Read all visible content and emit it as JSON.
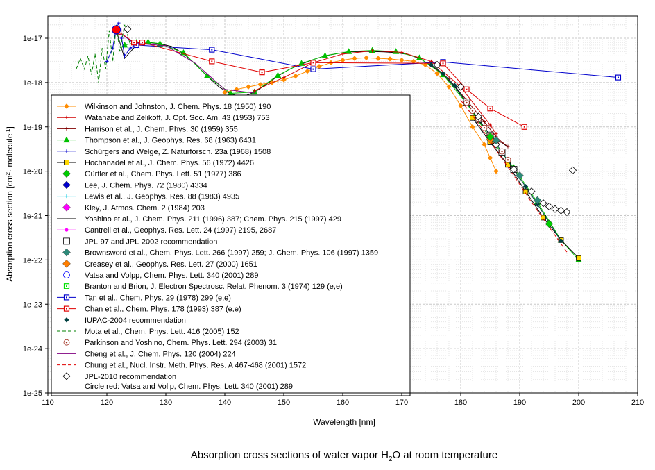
{
  "chart_data": {
    "type": "line",
    "title": "Absorption cross sections of water vapor H₂O at room temperature",
    "title_main": "Absorption cross sections of water vapor H",
    "title_sub": "2",
    "title_tail": "O at room temperature",
    "xlabel": "Wavelength [nm]",
    "ylabel_main": "Absorption cross section [cm",
    "ylabel_sup1": "2",
    "ylabel_mid": " molecule",
    "ylabel_sup2": "-1",
    "ylabel_tail": "]",
    "ylabel": "Absorption cross section [cm2 molecule-1]",
    "xlim": [
      110,
      210
    ],
    "ylim": [
      1e-25,
      3e-17
    ],
    "y_scale": "log",
    "grid": true,
    "legend_position": "lower-left",
    "x_ticks": [
      "110",
      "120",
      "130",
      "140",
      "150",
      "160",
      "170",
      "180",
      "190",
      "200",
      "210"
    ],
    "y_ticks": [
      "1e-17",
      "1e-18",
      "1e-19",
      "1e-20",
      "1e-21",
      "1e-22",
      "1e-23",
      "1e-24",
      "1e-25"
    ],
    "legend": [
      {
        "label": "Wilkinson and Johnston, J. Chem. Phys. 18 (1950) 190",
        "color": "#ff8c00",
        "marker": "diamond-small",
        "line": "solid"
      },
      {
        "label": "Watanabe and Zelikoff, J. Opt. Soc. Am. 43 (1953) 753",
        "color": "#d00000",
        "marker": "plus",
        "line": "solid"
      },
      {
        "label": "Harrison et al., J. Chem. Phys. 30 (1959) 355",
        "color": "#800000",
        "marker": "plus",
        "line": "solid"
      },
      {
        "label": "Thompson et al., J. Geophys. Res. 68 (1963) 6431",
        "color": "#00c000",
        "marker": "triangle",
        "line": "solid"
      },
      {
        "label": "Schürgers and Welge, Z. Naturforsch. 23a (1968) 1508",
        "color": "#0000cc",
        "marker": "plus",
        "line": "solid"
      },
      {
        "label": "Hochanadel et al., J. Chem. Phys. 56 (1972) 4426",
        "color": "#000000",
        "marker": "square-yellow",
        "line": "solid"
      },
      {
        "label": "Gürtler et al., Chem. Phys. Lett. 51 (1977) 386",
        "color": "#00cc00",
        "marker": "diamond-big",
        "line": "none"
      },
      {
        "label": "Lee, J. Chem. Phys. 72 (1980) 4334",
        "color": "#0000cc",
        "marker": "diamond-big",
        "line": "none"
      },
      {
        "label": "Lewis et al., J. Geophys. Res. 88 (1983) 4935",
        "color": "#00c8e0",
        "marker": "plus",
        "line": "solid"
      },
      {
        "label": "Kley, J. Atmos. Chem. 2 (1984) 203",
        "color": "#ff00ff",
        "marker": "diamond-big",
        "line": "none"
      },
      {
        "label": "Yoshino et al., J. Chem. Phys. 211 (1996) 387; Chem. Phys. 215 (1997) 429",
        "color": "#000000",
        "marker": "none",
        "line": "solid"
      },
      {
        "label": "Cantrell et al., Geophys. Res. Lett. 24 (1997) 2195, 2687",
        "color": "#ff00ff",
        "marker": "circle-small",
        "line": "solid"
      },
      {
        "label": "JPL-97 and JPL-2002 recommendation",
        "color": "#000000",
        "marker": "square-open",
        "line": "none"
      },
      {
        "label": "Brownsword et al., Chem. Phys. Lett. 266 (1997) 259; J. Chem. Phys. 106 (1997) 1359",
        "color": "#2e8b7a",
        "marker": "diamond-big",
        "line": "none"
      },
      {
        "label": "Creasey et al., Geophys. Res. Lett. 27 (2000) 1651",
        "color": "#ff7f00",
        "marker": "diamond-big",
        "line": "none"
      },
      {
        "label": "Vatsa and Volpp, Chem. Phys. Lett. 340 (2001) 289",
        "color": "#0000ff",
        "marker": "circle-open",
        "line": "none"
      },
      {
        "label": "Branton and Brion, J. Electron Spectrosc. Relat. Phenom. 3 (1974) 129 (e,e)",
        "color": "#00e000",
        "marker": "square-dot",
        "line": "none"
      },
      {
        "label": "Tan et al., Chem. Phys. 29 (1978) 299 (e,e)",
        "color": "#0000cc",
        "marker": "square-dot",
        "line": "solid"
      },
      {
        "label": "Chan et al., Chem. Phys. 178 (1993) 387 (e,e)",
        "color": "#e00000",
        "marker": "square-dot",
        "line": "solid"
      },
      {
        "label": "IUPAC-2004 recommendation",
        "color": "#004040",
        "marker": "diamond-small",
        "line": "none"
      },
      {
        "label": "Mota et al., Chem. Phys. Lett. 416 (2005) 152",
        "color": "#008000",
        "marker": "none",
        "line": "dashed"
      },
      {
        "label": "Parkinson and Yoshino, Chem. Phys. Lett. 294 (2003) 31",
        "color": "#a03020",
        "marker": "circle-dot",
        "line": "none"
      },
      {
        "label": "Cheng et al., J. Chem. Phys. 120 (2004) 224",
        "color": "#800080",
        "marker": "none",
        "line": "solid"
      },
      {
        "label": "Chung et al., Nucl. Instr. Meth. Phys. Res. A 467-468 (2001) 1572",
        "color": "#e00000",
        "marker": "none",
        "line": "dashed"
      },
      {
        "label": "JPL-2010 recommendation",
        "color": "#000000",
        "marker": "diamond-open",
        "line": "none"
      }
    ],
    "legend_note": "Circle red: Vatsa and Vollp, Chem. Phys. Lett. 340 (2001) 289",
    "series": [
      {
        "name": "Yoshino et al., J. Chem. Phys. 211 (1996) 387; Chem. Phys. 215 (1997) 429",
        "color": "#000000",
        "dash": "none",
        "marker": "none",
        "x": [
          121.6,
          123,
          125,
          127,
          129,
          131,
          133,
          135,
          137,
          139,
          141,
          143,
          145,
          147,
          149,
          151,
          153,
          155,
          157,
          159,
          161,
          163,
          165,
          167,
          169,
          171,
          173,
          175,
          177,
          179,
          181,
          183,
          185,
          186,
          187,
          188
        ],
        "y": [
          1.5e-17,
          3.5e-18,
          7e-18,
          8e-18,
          7.5e-18,
          6.5e-18,
          4.5e-18,
          2.6e-18,
          1.4e-18,
          8e-19,
          5.5e-19,
          4.8e-19,
          6e-19,
          9e-19,
          1.4e-18,
          2e-18,
          2.6e-18,
          3.3e-18,
          4e-18,
          4.5e-18,
          4.9e-18,
          5e-18,
          5e-18,
          4.9e-18,
          4.7e-18,
          4.3e-18,
          3.5e-18,
          2.4e-18,
          1.5e-18,
          8e-19,
          3.5e-19,
          1.4e-19,
          6.5e-20,
          5e-20,
          4.4e-20,
          3.5e-20
        ]
      },
      {
        "name": "Thompson et al., J. Geophys. Res. 68 (1963) 6431",
        "color": "#00c000",
        "dash": "none",
        "marker": "triangle",
        "x": [
          123,
          125,
          127,
          129,
          133,
          137,
          141,
          145,
          149,
          153,
          157,
          161,
          165,
          169,
          173,
          177,
          181,
          185,
          189,
          193,
          197,
          200
        ],
        "y": [
          7e-18,
          8e-18,
          8.2e-18,
          7.5e-18,
          4.7e-18,
          1.4e-18,
          5.7e-19,
          6.1e-19,
          1.45e-18,
          2.7e-18,
          4e-18,
          5e-18,
          5.3e-18,
          5e-18,
          3.6e-18,
          1.5e-18,
          3.4e-19,
          5.5e-20,
          1.2e-20,
          2e-21,
          2.8e-22,
          1e-22
        ]
      },
      {
        "name": "Wilkinson and Johnston, J. Chem. Phys. 18 (1950) 190",
        "color": "#ff8c00",
        "dash": "none",
        "marker": "diamond-small",
        "x": [
          140,
          142,
          144,
          146,
          148,
          150,
          152,
          154,
          156,
          158,
          160,
          162,
          164,
          166,
          168,
          170,
          172,
          174,
          176,
          178,
          180,
          182,
          184,
          185,
          186
        ],
        "y": [
          6e-19,
          7e-19,
          8e-19,
          9e-19,
          1e-18,
          1.15e-18,
          1.4e-18,
          1.8e-18,
          2.3e-18,
          2.8e-18,
          3.2e-18,
          3.5e-18,
          3.6e-18,
          3.5e-18,
          3.4e-18,
          3.2e-18,
          3e-18,
          2.5e-18,
          1.6e-18,
          8e-19,
          3e-19,
          1e-19,
          4e-20,
          2e-20,
          1e-20
        ]
      },
      {
        "name": "Watanabe and Zelikoff, J. Opt. Soc. Am. 43 (1953) 753",
        "color": "#d00000",
        "dash": "none",
        "marker": "plus",
        "x": [
          145,
          150,
          155,
          160,
          165,
          170,
          175,
          180,
          185,
          186
        ],
        "y": [
          6.5e-19,
          1.3e-18,
          2.8e-18,
          4.4e-18,
          5.2e-18,
          4.8e-18,
          3e-18,
          8e-19,
          1.1e-19,
          7e-20
        ]
      },
      {
        "name": "Harrison et al., J. Chem. Phys. 30 (1959) 355",
        "color": "#800000",
        "dash": "none",
        "marker": "plus",
        "x": [
          175,
          178,
          181,
          184,
          186,
          187,
          188
        ],
        "y": [
          2.5e-18,
          1.2e-18,
          4e-19,
          1.3e-19,
          6e-20,
          4.5e-20,
          3.6e-20
        ]
      },
      {
        "name": "Schürgers and Welge, Z. Naturforsch. 23a (1968) 1508",
        "color": "#0000cc",
        "dash": "none",
        "marker": "plus",
        "x": [
          120,
          121,
          121.5,
          122,
          122.5,
          123,
          124,
          125
        ],
        "y": [
          3e-18,
          6e-18,
          1.5e-17,
          2.2e-17,
          1e-17,
          4e-18,
          6e-18,
          7.5e-18
        ]
      },
      {
        "name": "Hochanadel et al., J. Chem. Phys. 56 (1972) 4426",
        "color": "#000000",
        "dash": "none",
        "marker": "square-yellow",
        "x": [
          182,
          185,
          188,
          191,
          194,
          197,
          200
        ],
        "y": [
          1.6e-19,
          4.5e-20,
          1.4e-20,
          3.5e-21,
          9e-22,
          2.8e-22,
          1.1e-22
        ]
      },
      {
        "name": "Tan et al., Chem. Phys. 29 (1978) 299 (e,e)",
        "color": "#0000cc",
        "dash": "none",
        "marker": "square-dot",
        "x": [
          122,
          125,
          137.8,
          155,
          177,
          206.7
        ],
        "y": [
          1.4e-17,
          7e-18,
          5.5e-18,
          2e-18,
          2.9e-18,
          1.3e-18
        ]
      },
      {
        "name": "Chan et al., Chem. Phys. 178 (1993) 387 (e,e)",
        "color": "#e00000",
        "dash": "none",
        "marker": "square-dot",
        "x": [
          122,
          124.6,
          126,
          137.8,
          146.3,
          155,
          177,
          181,
          185,
          190.8
        ],
        "y": [
          1.4e-17,
          8e-18,
          8e-18,
          3e-18,
          1.7e-18,
          2.8e-18,
          2.7e-18,
          7e-19,
          2.6e-19,
          1e-19
        ]
      },
      {
        "name": "Mota et al., Chem. Phys. Lett. 416 (2005) 152",
        "color": "#008000",
        "dash": "5,3",
        "marker": "none",
        "x": [
          114.8,
          115.5,
          116.2,
          116.8,
          117.4,
          118,
          118.6,
          119.2,
          119.8,
          120.4,
          121,
          121.6,
          122.2,
          123,
          124
        ],
        "y": [
          2e-18,
          3.5e-18,
          2e-18,
          4e-18,
          1.5e-18,
          4.5e-18,
          1e-18,
          6e-18,
          2e-18,
          1.5e-17,
          3e-18,
          2e-17,
          5e-18,
          2e-17,
          7e-18
        ]
      },
      {
        "name": "Chung et al., Nucl. Instr. Meth. Phys. Res. A 467-468 (2001) 1572",
        "color": "#e00000",
        "dash": "6,3",
        "marker": "none",
        "x": [
          180,
          183,
          186,
          189,
          192,
          195,
          198
        ],
        "y": [
          4e-19,
          1.2e-19,
          3e-20,
          8e-21,
          2e-21,
          5.5e-22,
          1.5e-22
        ]
      },
      {
        "name": "Cheng et al., J. Chem. Phys. 120 (2004) 224",
        "color": "#800080",
        "dash": "none",
        "marker": "none",
        "x": [
          125,
          130,
          135,
          140,
          145
        ],
        "y": [
          7.6e-18,
          6.8e-18,
          2.7e-18,
          7e-19,
          5.8e-19
        ]
      },
      {
        "name": "IUPAC-2004 recommendation",
        "color": "#004040",
        "dash": "none",
        "marker": "diamond-small",
        "x": [
          175,
          177,
          179,
          181,
          183,
          185,
          187,
          189,
          191,
          193,
          195,
          197
        ],
        "y": [
          2.5e-18,
          1.6e-18,
          8.5e-19,
          3.6e-19,
          1.5e-19,
          6.5e-20,
          2.7e-20,
          1.1e-20,
          4.5e-21,
          1.8e-21,
          7e-22,
          2.7e-22
        ]
      },
      {
        "name": "JPL-97 and JPL-2002 recommendation",
        "color": "#000000",
        "dash": "none",
        "marker": "square-open",
        "x": [
          181,
          183,
          185,
          187,
          189
        ],
        "y": [
          3.6e-19,
          1.5e-19,
          6.5e-20,
          2.7e-20,
          1.1e-20
        ]
      },
      {
        "name": "Parkinson and Yoshino, Chem. Phys. Lett. 294 (2003) 31",
        "color": "#a03020",
        "dash": "none",
        "marker": "circle-dot",
        "x": [
          181,
          182,
          183,
          184,
          185,
          186,
          187,
          188
        ],
        "y": [
          3.5e-19,
          2.3e-19,
          1.5e-19,
          9.5e-20,
          6.3e-20,
          4.2e-20,
          2.8e-20,
          1.8e-20
        ]
      },
      {
        "name": "JPL-2010 recommendation",
        "color": "#000000",
        "dash": "none",
        "marker": "diamond-open",
        "x": [
          123.5,
          176,
          180,
          183,
          186,
          189,
          192,
          194,
          195,
          196,
          197,
          198,
          199
        ],
        "y": [
          1.6e-17,
          2.5e-18,
          8e-19,
          1.7e-19,
          4e-20,
          1.1e-20,
          3.5e-21,
          1.9e-21,
          1.6e-21,
          1.4e-21,
          1.3e-21,
          1.2e-21,
          1.05e-20
        ]
      },
      {
        "name": "Brownsword et al., Chem. Phys. Lett. 266 (1997) 259; J. Chem. Phys. 106 (1997) 1359",
        "color": "#2e8b7a",
        "dash": "none",
        "marker": "diamond-big",
        "x": [
          186,
          190,
          193
        ],
        "y": [
          5e-20,
          8e-21,
          2.2e-21
        ]
      },
      {
        "name": "Creasey et al., Geophys. Res. Lett. 27 (2000) 1651",
        "color": "#ff7f00",
        "dash": "none",
        "marker": "diamond-big",
        "x": [
          185
        ],
        "y": [
          5.2e-20
        ]
      },
      {
        "name": "Gürtler et al., Chem. Phys. Lett. 51 (1977) 386",
        "color": "#00cc00",
        "dash": "none",
        "marker": "diamond-big",
        "x": [
          185,
          195
        ],
        "y": [
          6e-20,
          6.5e-22
        ]
      },
      {
        "name": "Kley, J. Atmos. Chem. 2 (1984) 203",
        "color": "#ff00ff",
        "dash": "none",
        "marker": "diamond-big",
        "x": [
          121.6
        ],
        "y": [
          1.45e-17
        ]
      },
      {
        "name": "Vatsa and Volpp, Chem. Phys. Lett. 340 (2001) 289",
        "color": "#ff0000",
        "dash": "none",
        "marker": "circle-red",
        "x": [
          121.6
        ],
        "y": [
          1.55e-17
        ]
      }
    ]
  }
}
